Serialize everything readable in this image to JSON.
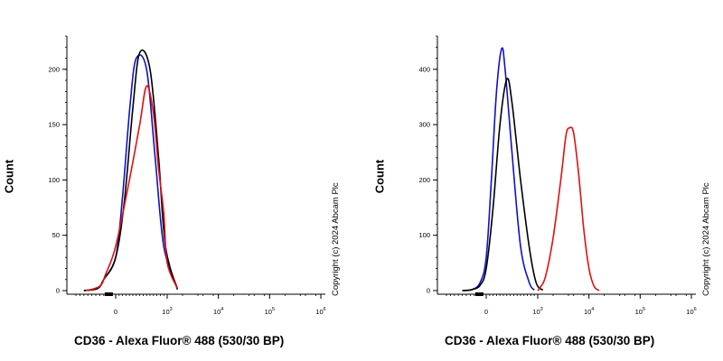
{
  "colors": {
    "isotype": "#000000",
    "unstained": "#1010c8",
    "stained": "#e01010"
  },
  "chart_data": [
    {
      "type": "line",
      "xlabel": "CD36 - Alexa Fluor® 488 (530/30 BP)",
      "ylabel": "Count",
      "copyright": "Copyright (c) 2024 Abcam Plc",
      "ylim": [
        0,
        230
      ],
      "yticks": [
        "0",
        "50",
        "100",
        "150",
        "200"
      ],
      "ytick_values": [
        0,
        50,
        100,
        150,
        200
      ],
      "xticks": [
        {
          "base": "0",
          "exp": ""
        },
        {
          "base": "10",
          "exp": "3"
        },
        {
          "base": "10",
          "exp": "4"
        },
        {
          "base": "10",
          "exp": "5"
        },
        {
          "base": "10",
          "exp": "6"
        }
      ],
      "xtick_decades": [
        0,
        3,
        4,
        5,
        6
      ],
      "series": [
        {
          "color": "unstained",
          "x": [
            -1.6,
            -0.9,
            -0.6,
            0,
            0.4,
            0.85,
            1.2,
            1.8,
            2.3,
            2.8,
            3.2
          ],
          "y": [
            0,
            2,
            10,
            30,
            85,
            170,
            210,
            200,
            120,
            40,
            2
          ]
        },
        {
          "color": "isotype",
          "x": [
            -1.6,
            -0.9,
            -0.6,
            0,
            0.5,
            1.0,
            1.4,
            2.0,
            2.5,
            2.9,
            3.2
          ],
          "y": [
            0,
            2,
            10,
            30,
            80,
            165,
            215,
            200,
            120,
            40,
            1
          ]
        },
        {
          "color": "stained",
          "x": [
            -1.5,
            -0.8,
            -0.5,
            0,
            0.8,
            1.4,
            1.8,
            2.2,
            2.5,
            2.8,
            3.0,
            3.2
          ],
          "y": [
            0,
            4,
            15,
            40,
            100,
            150,
            185,
            160,
            110,
            70,
            25,
            2
          ]
        }
      ]
    },
    {
      "type": "line",
      "xlabel": "CD36 - Alexa Fluor® 488 (530/30 BP)",
      "ylabel": "Count",
      "copyright": "Copyright (c) 2024 Abcam Plc",
      "ylim": [
        0,
        460
      ],
      "yticks": [
        "0",
        "100",
        "200",
        "300",
        "400"
      ],
      "ytick_values": [
        0,
        100,
        200,
        300,
        400
      ],
      "xticks": [
        {
          "base": "0",
          "exp": ""
        },
        {
          "base": "10",
          "exp": "3"
        },
        {
          "base": "10",
          "exp": "4"
        },
        {
          "base": "10",
          "exp": "5"
        },
        {
          "base": "10",
          "exp": "6"
        }
      ],
      "xtick_decades": [
        0,
        3,
        4,
        5,
        6
      ],
      "series": [
        {
          "color": "unstained",
          "x": [
            -1.2,
            -0.7,
            -0.3,
            0,
            0.3,
            0.6,
            0.9,
            1.1,
            1.5,
            2.0,
            2.5,
            2.8
          ],
          "y": [
            0,
            2,
            15,
            60,
            200,
            360,
            437,
            400,
            250,
            80,
            15,
            1
          ]
        },
        {
          "color": "isotype",
          "x": [
            -1.2,
            -0.7,
            -0.3,
            0,
            0.4,
            0.8,
            1.2,
            1.5,
            2.0,
            2.5,
            2.9,
            3.1
          ],
          "y": [
            0,
            2,
            10,
            40,
            150,
            300,
            382,
            340,
            200,
            80,
            15,
            1
          ]
        },
        {
          "color": "stained",
          "x": [
            3.0,
            3.05,
            3.15,
            3.3,
            3.45,
            3.55,
            3.62,
            3.7,
            3.8,
            3.9,
            4.0,
            4.1,
            4.2
          ],
          "y": [
            0,
            6,
            25,
            95,
            200,
            280,
            294,
            285,
            210,
            110,
            40,
            8,
            0
          ]
        }
      ]
    }
  ]
}
